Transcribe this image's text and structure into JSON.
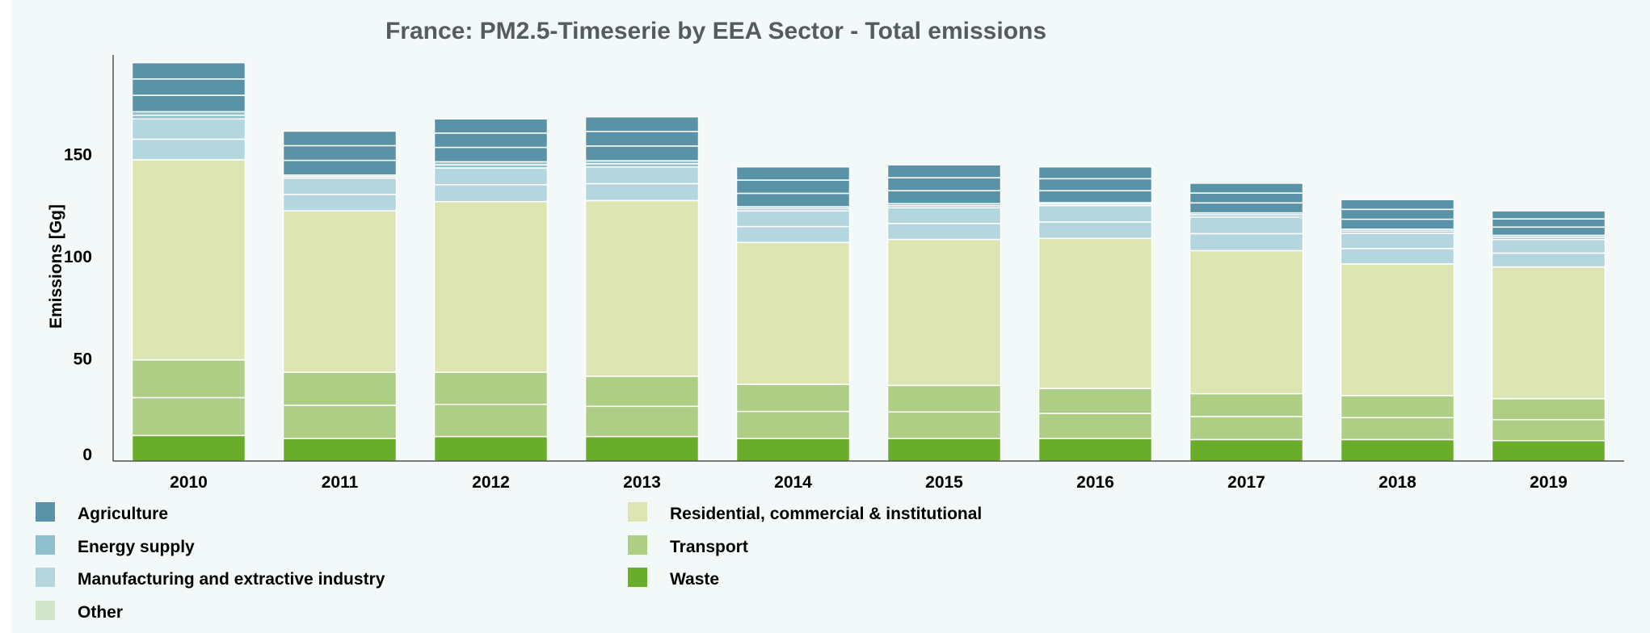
{
  "chart_data": {
    "type": "bar",
    "stacked": true,
    "title": "France: PM2.5-Timeserie by EEA Sector - Total emissions",
    "ylabel": "Emissions [Gg]",
    "xlabel": "",
    "ylim": [
      0,
      200
    ],
    "yticks": [
      0,
      50,
      100,
      150
    ],
    "grid": false,
    "legend_position": "bottom",
    "categories": [
      "2010",
      "2011",
      "2012",
      "2013",
      "2014",
      "2015",
      "2016",
      "2017",
      "2018",
      "2019"
    ],
    "sub_segments": {
      "Agriculture": 3,
      "Energy supply": 2,
      "Manufacturing and extractive industry": 2,
      "Other": 1,
      "Residential, commercial & institutional": 1,
      "Transport": 2,
      "Waste": 1
    },
    "series": [
      {
        "name": "Waste",
        "color": "#6aad2a",
        "values": [
          12.5,
          11.0,
          12.0,
          12.0,
          11.0,
          11.0,
          11.0,
          10.5,
          10.5,
          10.0
        ]
      },
      {
        "name": "Transport",
        "color": "#afce85",
        "values": [
          37.0,
          32.5,
          31.5,
          29.5,
          26.5,
          26.0,
          24.5,
          22.5,
          21.5,
          20.5
        ]
      },
      {
        "name": "Other",
        "color": "#d3e4cc",
        "values": [
          0,
          0,
          0,
          0,
          0,
          0,
          0,
          0,
          0,
          0
        ]
      },
      {
        "name": "Residential, commercial & institutional",
        "color": "#dde6b3",
        "values": [
          98.0,
          79.0,
          83.5,
          86.0,
          69.5,
          71.5,
          73.5,
          70.0,
          64.5,
          64.5
        ]
      },
      {
        "name": "Manufacturing and extractive industry",
        "color": "#b3d6df",
        "values": [
          20.0,
          16.0,
          16.5,
          16.5,
          15.5,
          15.5,
          16.0,
          16.5,
          15.0,
          13.5
        ]
      },
      {
        "name": "Energy supply",
        "color": "#90bfcd",
        "values": [
          3.5,
          1.5,
          3.0,
          3.0,
          2.0,
          2.0,
          1.5,
          2.0,
          2.0,
          2.0
        ]
      },
      {
        "name": "Agriculture",
        "color": "#5a93a8",
        "values": [
          24.0,
          21.5,
          21.0,
          21.5,
          19.5,
          19.0,
          17.5,
          14.5,
          14.5,
          12.0
        ]
      }
    ],
    "legend": [
      {
        "name": "Agriculture",
        "color": "#5a93a8"
      },
      {
        "name": "Energy supply",
        "color": "#90bfcd"
      },
      {
        "name": "Manufacturing and extractive industry",
        "color": "#b3d6df"
      },
      {
        "name": "Other",
        "color": "#d3e4cc"
      },
      {
        "name": "Residential, commercial & institutional",
        "color": "#dde6b3"
      },
      {
        "name": "Transport",
        "color": "#afce85"
      },
      {
        "name": "Waste",
        "color": "#6aad2a"
      }
    ]
  }
}
